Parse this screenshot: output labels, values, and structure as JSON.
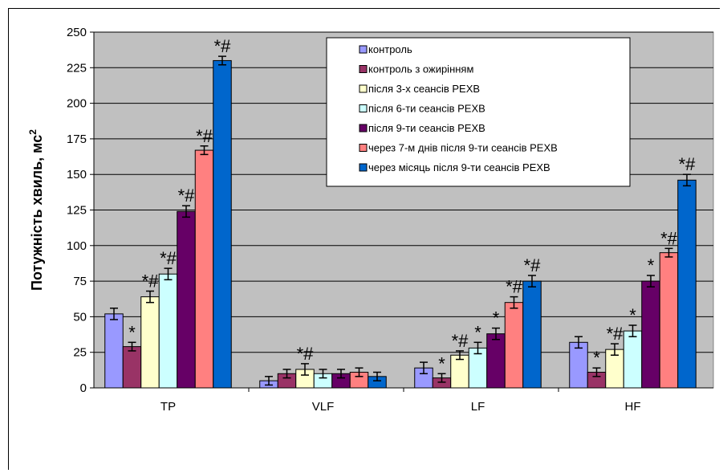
{
  "chart_data": {
    "type": "bar",
    "ylabel": "Потужність хвиль, мс",
    "ylabel_sup": "2",
    "xlabel": "",
    "ylim": [
      0,
      250
    ],
    "yticks": [
      0,
      25,
      50,
      75,
      100,
      125,
      150,
      175,
      200,
      225,
      250
    ],
    "grid": true,
    "legend_position": "top-right",
    "categories": [
      "TP",
      "VLF",
      "LF",
      "HF"
    ],
    "series": [
      {
        "name": "контроль",
        "color": "#9999ff",
        "values": [
          52,
          5,
          14,
          32
        ],
        "errors": [
          4,
          3,
          4,
          4
        ],
        "annotations": [
          "",
          "",
          "",
          ""
        ]
      },
      {
        "name": " контроль з ожирінням",
        "color": "#993366",
        "values": [
          29,
          10,
          7,
          11
        ],
        "errors": [
          3,
          3,
          3,
          3
        ],
        "annotations": [
          "*",
          "",
          "*",
          "*"
        ]
      },
      {
        "name": "після 3-х сеансів РЕХВ",
        "color": "#ffffcc",
        "values": [
          64,
          13,
          23,
          27
        ],
        "errors": [
          4,
          4,
          3,
          4
        ],
        "annotations": [
          "*#",
          "*#",
          "*#",
          "*#"
        ]
      },
      {
        "name": "після 6-ти сеансів РЕХВ",
        "color": "#ccffff",
        "values": [
          80,
          10,
          28,
          40
        ],
        "errors": [
          4,
          3,
          4,
          4
        ],
        "annotations": [
          "*#",
          "",
          "*",
          "*"
        ]
      },
      {
        "name": "після 9-ти сеансів РЕХВ",
        "color": "#660066",
        "values": [
          124,
          10,
          38,
          75
        ],
        "errors": [
          4,
          3,
          4,
          4
        ],
        "annotations": [
          "*#",
          "",
          "*",
          "*"
        ]
      },
      {
        "name": "через 7-м днів після 9-ти сеансів РЕХВ",
        "color": "#ff8080",
        "values": [
          167,
          11,
          60,
          95
        ],
        "errors": [
          3,
          3,
          4,
          3
        ],
        "annotations": [
          "*#",
          "",
          "*#",
          "*#"
        ]
      },
      {
        "name": "через місяць після 9-ти сеансів РЕХВ",
        "color": "#0066cc",
        "values": [
          230,
          8,
          75,
          146
        ],
        "errors": [
          3,
          3,
          4,
          4
        ],
        "annotations": [
          "*#",
          "",
          "*#",
          "*#"
        ]
      }
    ]
  }
}
